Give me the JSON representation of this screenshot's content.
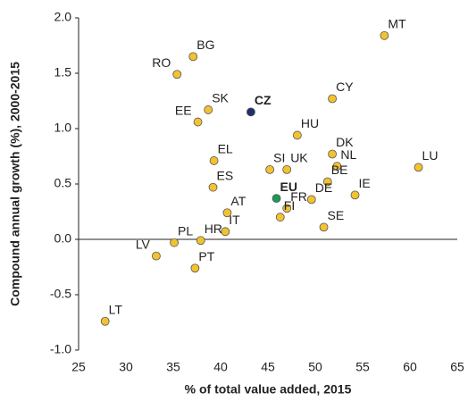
{
  "chart_data": {
    "type": "scatter",
    "x_label": "% of total value added, 2015",
    "y_label": "Compound annual growth (%), 2000-2015",
    "xlim": [
      25,
      65
    ],
    "xticks": [
      25,
      30,
      35,
      40,
      45,
      50,
      55,
      60,
      65
    ],
    "ylim": [
      -1.0,
      2.0
    ],
    "yticks": [
      {
        "value": -1.0,
        "label": "-1.0"
      },
      {
        "value": -0.5,
        "label": "-0.5"
      },
      {
        "value": 0,
        "label": "0.0"
      },
      {
        "value": 0.5,
        "label": "0.5"
      },
      {
        "value": 1.0,
        "label": "1.0"
      },
      {
        "value": 1.5,
        "label": "1.5"
      },
      {
        "value": 2.0,
        "label": "2.0"
      }
    ],
    "series": [
      {
        "color": "#f2c230",
        "bold_labels": false,
        "labels": [
          "MT",
          "BG",
          "RO",
          "SK",
          "EE",
          "CY",
          "HU",
          "DK",
          "LU",
          "NL",
          "EL",
          "SI",
          "UK",
          "BE",
          "ES",
          "IE",
          "DE",
          "FR",
          "FI",
          "AT",
          "SE",
          "IT",
          "HR",
          "PL",
          "LV",
          "PT",
          "LT"
        ],
        "x": [
          57.3,
          37.1,
          35.4,
          38.7,
          37.6,
          51.8,
          48.1,
          51.8,
          60.9,
          52.3,
          39.3,
          45.2,
          47.0,
          51.3,
          39.2,
          54.2,
          49.6,
          47.0,
          46.3,
          40.7,
          50.9,
          40.5,
          37.9,
          35.1,
          33.2,
          37.3,
          27.8
        ],
        "values": [
          1.84,
          1.65,
          1.49,
          1.17,
          1.06,
          1.27,
          0.94,
          0.77,
          0.65,
          0.66,
          0.71,
          0.63,
          0.63,
          0.52,
          0.47,
          0.4,
          0.36,
          0.28,
          0.2,
          0.24,
          0.11,
          0.07,
          -0.01,
          -0.03,
          -0.15,
          -0.26,
          -0.74
        ]
      },
      {
        "color": "#1f2f6b",
        "bold_labels": true,
        "labels": [
          "CZ"
        ],
        "x": [
          43.2
        ],
        "values": [
          1.15
        ]
      },
      {
        "color": "#1a9a5a",
        "bold_labels": true,
        "labels": [
          "EU"
        ],
        "x": [
          45.9
        ],
        "values": [
          0.37
        ]
      }
    ]
  }
}
